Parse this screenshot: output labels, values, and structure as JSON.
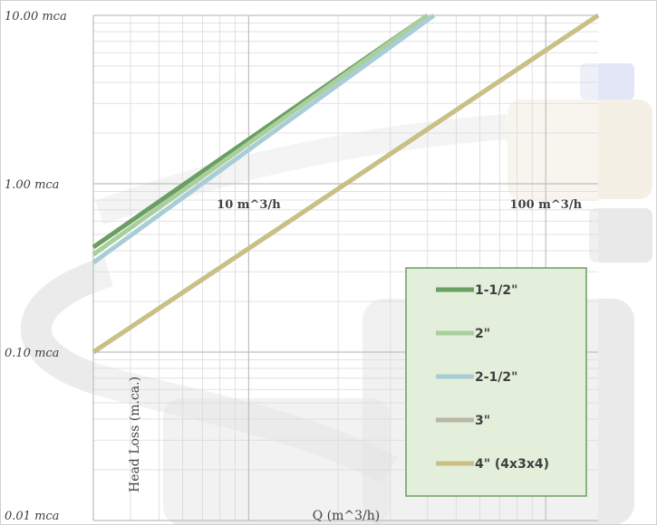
{
  "chart_data": {
    "type": "line",
    "xscale": "log",
    "yscale": "log",
    "xlim": [
      3,
      150
    ],
    "ylim": [
      0.01,
      10
    ],
    "xlabel": "Q (m^3/h)",
    "ylabel": "Head Loss (m.ca.)",
    "y_ticks": [
      {
        "value": 10,
        "label": "10.00 mca"
      },
      {
        "value": 1,
        "label": "1.00 mca"
      },
      {
        "value": 0.1,
        "label": "0.10 mca"
      },
      {
        "value": 0.01,
        "label": "0.01 mca"
      }
    ],
    "x_ticks": [
      {
        "value": 10,
        "label": "10 m^3/h"
      },
      {
        "value": 100,
        "label": "100 m^3/h"
      }
    ],
    "grid": true,
    "legend_position": "bottom-right",
    "series": [
      {
        "name": "1-1/2\"",
        "color": "#6a9e62",
        "x": [
          3,
          40
        ],
        "y": [
          0.42,
          10
        ]
      },
      {
        "name": "2\"",
        "color": "#a9cf9c",
        "x": [
          3,
          40
        ],
        "y": [
          0.38,
          10
        ]
      },
      {
        "name": "2-1/2\"",
        "color": "#a8cdd6",
        "x": [
          3,
          42
        ],
        "y": [
          0.34,
          10
        ]
      },
      {
        "name": "3\"",
        "color": "#bcb6a6",
        "x": [
          3,
          150
        ],
        "y": [
          0.1,
          10
        ]
      },
      {
        "name": "4\" (4x3x4)",
        "color": "#cbbf86",
        "x": [
          3,
          150
        ],
        "y": [
          0.1,
          10
        ]
      }
    ]
  }
}
